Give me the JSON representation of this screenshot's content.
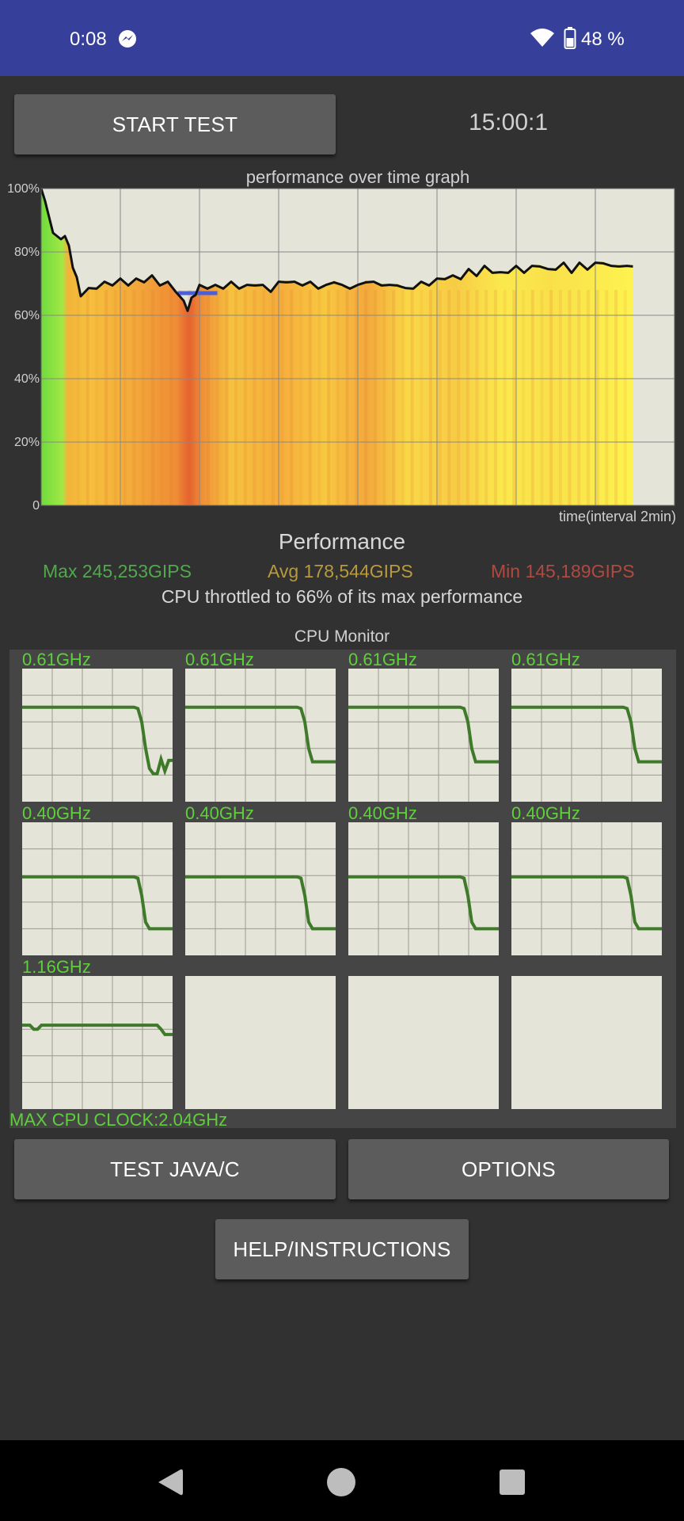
{
  "status_bar": {
    "time": "0:08",
    "messenger_icon": "messenger-icon",
    "wifi_icon": "wifi-icon",
    "battery_icon": "battery-icon",
    "battery": "48 %"
  },
  "controls": {
    "start_test_label": "START TEST",
    "timer": "15:00:1",
    "test_java_label": "TEST JAVA/C",
    "options_label": "OPTIONS",
    "help_label": "HELP/INSTRUCTIONS"
  },
  "graph": {
    "title": "performance over time graph",
    "xlabel": "time(interval 2min)"
  },
  "chart_data": {
    "type": "line",
    "title": "performance over time graph",
    "xlabel": "time(interval 2min)",
    "ylabel": "",
    "y_ticks": [
      "100%",
      "80%",
      "60%",
      "40%",
      "20%",
      "0"
    ],
    "ylim": [
      0,
      100
    ],
    "xlim": [
      0,
      16
    ],
    "x_grid_interval": 2,
    "grid": true,
    "series": [
      {
        "x": [
          0,
          0.1,
          0.2,
          0.3,
          0.4,
          0.5,
          0.6,
          0.7,
          0.8,
          0.9,
          1.0,
          1.2,
          1.4,
          1.6,
          1.8,
          2.0,
          2.2,
          2.4,
          2.6,
          2.8,
          3.0,
          3.2,
          3.4,
          3.6,
          3.7,
          3.8,
          3.9,
          4.0,
          4.2,
          4.4,
          4.6,
          4.8,
          5.0,
          5.2,
          5.4,
          5.6,
          5.8,
          6.0,
          6.2,
          6.4,
          6.6,
          6.8,
          7.0,
          7.2,
          7.4,
          7.6,
          7.8,
          8.0,
          8.2,
          8.4,
          8.6,
          8.8,
          9.0,
          9.2,
          9.4,
          9.6,
          9.8,
          10.0,
          10.2,
          10.4,
          10.6,
          10.8,
          11.0,
          11.2,
          11.4,
          11.6,
          11.8,
          12.0,
          12.2,
          12.4,
          12.6,
          12.8,
          13.0,
          13.2,
          13.4,
          13.6,
          13.8,
          14.0,
          14.2,
          14.4,
          14.6,
          14.8,
          14.95
        ],
        "values": [
          100,
          96,
          91,
          86,
          85,
          84,
          85,
          82,
          75,
          72,
          66,
          68,
          69,
          70,
          70,
          71,
          70,
          71,
          71,
          72,
          70,
          70,
          68,
          64,
          62,
          65,
          67,
          69,
          69,
          69,
          69,
          70,
          69,
          69,
          70,
          69,
          68,
          70,
          71,
          70,
          70,
          70,
          69,
          69,
          71,
          69,
          69,
          69,
          71,
          70,
          70,
          69,
          70,
          68,
          69,
          70,
          70,
          71,
          72,
          72,
          72,
          74,
          73,
          75,
          74,
          73,
          74,
          75,
          74,
          75,
          76,
          74,
          75,
          76,
          74,
          76,
          75,
          76,
          77,
          75,
          76,
          75,
          76
        ]
      }
    ],
    "reference_band": {
      "x": [
        3.45,
        4.45
      ],
      "value": 67
    },
    "stats": {
      "title": "Performance",
      "max": "Max 245,253GIPS",
      "avg": "Avg 178,544GIPS",
      "min": "Min 145,189GIPS",
      "summary": "CPU throttled to 66% of its max performance"
    }
  },
  "cpu_monitor": {
    "title": "CPU Monitor",
    "cores": [
      {
        "freq": "0.61GHz",
        "trace": [
          0.71,
          0.71,
          0.71,
          0.71,
          0.71,
          0.71,
          0.71,
          0.71,
          0.71,
          0.71,
          0.71,
          0.71,
          0.71,
          0.71,
          0.71,
          0.71,
          0.71,
          0.71,
          0.71,
          0.71,
          0.71,
          0.71,
          0.71,
          0.71,
          0.71,
          0.71,
          0.71,
          0.71,
          0.71,
          0.71,
          0.7,
          0.6,
          0.4,
          0.25,
          0.21,
          0.21,
          0.32,
          0.23,
          0.31,
          0.31
        ]
      },
      {
        "freq": "0.61GHz",
        "trace": [
          0.71,
          0.71,
          0.71,
          0.71,
          0.71,
          0.71,
          0.71,
          0.71,
          0.71,
          0.71,
          0.71,
          0.71,
          0.71,
          0.71,
          0.71,
          0.71,
          0.71,
          0.71,
          0.71,
          0.71,
          0.71,
          0.71,
          0.71,
          0.71,
          0.71,
          0.71,
          0.71,
          0.71,
          0.71,
          0.71,
          0.7,
          0.6,
          0.4,
          0.3,
          0.3,
          0.3,
          0.3,
          0.3,
          0.3,
          0.3
        ]
      },
      {
        "freq": "0.61GHz",
        "trace": [
          0.71,
          0.71,
          0.71,
          0.71,
          0.71,
          0.71,
          0.71,
          0.71,
          0.71,
          0.71,
          0.71,
          0.71,
          0.71,
          0.71,
          0.71,
          0.71,
          0.71,
          0.71,
          0.71,
          0.71,
          0.71,
          0.71,
          0.71,
          0.71,
          0.71,
          0.71,
          0.71,
          0.71,
          0.71,
          0.71,
          0.7,
          0.6,
          0.4,
          0.3,
          0.3,
          0.3,
          0.3,
          0.3,
          0.3,
          0.3
        ]
      },
      {
        "freq": "0.61GHz",
        "trace": [
          0.71,
          0.71,
          0.71,
          0.71,
          0.71,
          0.71,
          0.71,
          0.71,
          0.71,
          0.71,
          0.71,
          0.71,
          0.71,
          0.71,
          0.71,
          0.71,
          0.71,
          0.71,
          0.71,
          0.71,
          0.71,
          0.71,
          0.71,
          0.71,
          0.71,
          0.71,
          0.71,
          0.71,
          0.71,
          0.71,
          0.7,
          0.6,
          0.4,
          0.3,
          0.3,
          0.3,
          0.3,
          0.3,
          0.3,
          0.3
        ]
      },
      {
        "freq": "0.40GHz",
        "trace": [
          0.59,
          0.59,
          0.59,
          0.59,
          0.59,
          0.59,
          0.59,
          0.59,
          0.59,
          0.59,
          0.59,
          0.59,
          0.59,
          0.59,
          0.59,
          0.59,
          0.59,
          0.59,
          0.59,
          0.59,
          0.59,
          0.59,
          0.59,
          0.59,
          0.59,
          0.59,
          0.59,
          0.59,
          0.59,
          0.59,
          0.58,
          0.45,
          0.25,
          0.2,
          0.2,
          0.2,
          0.2,
          0.2,
          0.2,
          0.2
        ]
      },
      {
        "freq": "0.40GHz",
        "trace": [
          0.59,
          0.59,
          0.59,
          0.59,
          0.59,
          0.59,
          0.59,
          0.59,
          0.59,
          0.59,
          0.59,
          0.59,
          0.59,
          0.59,
          0.59,
          0.59,
          0.59,
          0.59,
          0.59,
          0.59,
          0.59,
          0.59,
          0.59,
          0.59,
          0.59,
          0.59,
          0.59,
          0.59,
          0.59,
          0.59,
          0.58,
          0.45,
          0.25,
          0.2,
          0.2,
          0.2,
          0.2,
          0.2,
          0.2,
          0.2
        ]
      },
      {
        "freq": "0.40GHz",
        "trace": [
          0.59,
          0.59,
          0.59,
          0.59,
          0.59,
          0.59,
          0.59,
          0.59,
          0.59,
          0.59,
          0.59,
          0.59,
          0.59,
          0.59,
          0.59,
          0.59,
          0.59,
          0.59,
          0.59,
          0.59,
          0.59,
          0.59,
          0.59,
          0.59,
          0.59,
          0.59,
          0.59,
          0.59,
          0.59,
          0.59,
          0.58,
          0.45,
          0.25,
          0.2,
          0.2,
          0.2,
          0.2,
          0.2,
          0.2,
          0.2
        ]
      },
      {
        "freq": "0.40GHz",
        "trace": [
          0.59,
          0.59,
          0.59,
          0.59,
          0.59,
          0.59,
          0.59,
          0.59,
          0.59,
          0.59,
          0.59,
          0.59,
          0.59,
          0.59,
          0.59,
          0.59,
          0.59,
          0.59,
          0.59,
          0.59,
          0.59,
          0.59,
          0.59,
          0.59,
          0.59,
          0.59,
          0.59,
          0.59,
          0.59,
          0.59,
          0.58,
          0.45,
          0.25,
          0.2,
          0.2,
          0.2,
          0.2,
          0.2,
          0.2,
          0.2
        ]
      },
      {
        "freq": "1.16GHz",
        "trace": [
          0.63,
          0.63,
          0.63,
          0.6,
          0.6,
          0.63,
          0.63,
          0.63,
          0.63,
          0.63,
          0.63,
          0.63,
          0.63,
          0.63,
          0.63,
          0.63,
          0.63,
          0.63,
          0.63,
          0.63,
          0.63,
          0.63,
          0.63,
          0.63,
          0.63,
          0.63,
          0.63,
          0.63,
          0.63,
          0.63,
          0.63,
          0.63,
          0.63,
          0.63,
          0.63,
          0.63,
          0.6,
          0.56,
          0.56,
          0.56
        ]
      },
      {
        "freq": "",
        "trace": []
      },
      {
        "freq": "",
        "trace": []
      },
      {
        "freq": "",
        "trace": []
      }
    ],
    "max_cpu_clock": "MAX CPU CLOCK:2.04GHz"
  },
  "nav_bar": {
    "back_icon": "back-triangle-icon",
    "home_icon": "home-circle-icon",
    "recents_icon": "recents-square-icon"
  },
  "colors": {
    "status_bar": "#36409a",
    "background": "#313131",
    "graph_bg": "#e4e4d8",
    "green": "#5fcf3b",
    "max_text": "#51a84d",
    "avg_text": "#b89a3c",
    "min_text": "#b04a40"
  }
}
